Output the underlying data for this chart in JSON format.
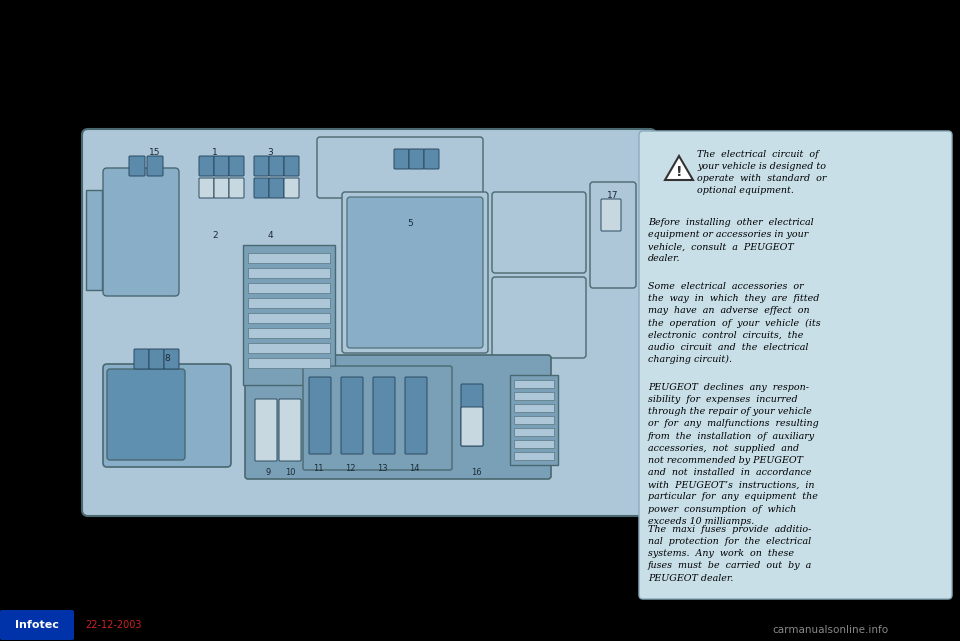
{
  "bg_color": "#000000",
  "diagram_bg": "#adc6d8",
  "diagram_border": "#4a6870",
  "fuse_blue": "#5b8aaa",
  "fuse_blue2": "#6090b0",
  "fuse_white": "#c8d8e0",
  "fuse_dark": "#2a4a60",
  "stripe_bg": "#7aa0b8",
  "relay_bg": "#88aec8",
  "text_panel_bg": "#c8dfe8",
  "text_panel_border": "#8aabbc",
  "footer_bar_color": "#1a1a6a",
  "footer_date_color": "#cc2222",
  "watermark_color": "#888888",
  "para0": "The  electrical  circuit  of\nyour vehicle is designed to\noperate  with  standard  or\noptional equipment.",
  "para1": "Before  installing  other  electrical\nequipment or accessories in your\nvehicle,  consult  a  PEUGEOT\ndealer.",
  "para2": "Some  electrical  accessories  or\nthe  way  in  which  they  are  fitted\nmay  have  an  adverse  effect  on\nthe  operation  of  your  vehicle  (its\nelectronic  control  circuits,  the\naudio  circuit  and  the  electrical\ncharging circuit).",
  "para3": "PEUGEOT  declines  any  respon-\nsibility  for  expenses  incurred\nthrough the repair of your vehicle\nor  for  any  malfunctions  resulting\nfrom  the  installation  of  auxiliary\naccessories,  not  supplied  and\nnot recommended by PEUGEOT\nand  not  installed  in  accordance\nwith  PEUGEOT’s  instructions,  in\nparticular  for  any  equipment  the\npower  consumption  of  which\nexceeds 10 milliamps.",
  "para4": "The  maxi  fuses  provide  additio-\nnal  protection  for  the  electrical\nsystems.  Any  work  on  these\nfuses  must  be  carried  out  by  a\nPEUGEOT dealer.",
  "footer_text": "22-12-2003",
  "infotec_bg": "#0033aa"
}
